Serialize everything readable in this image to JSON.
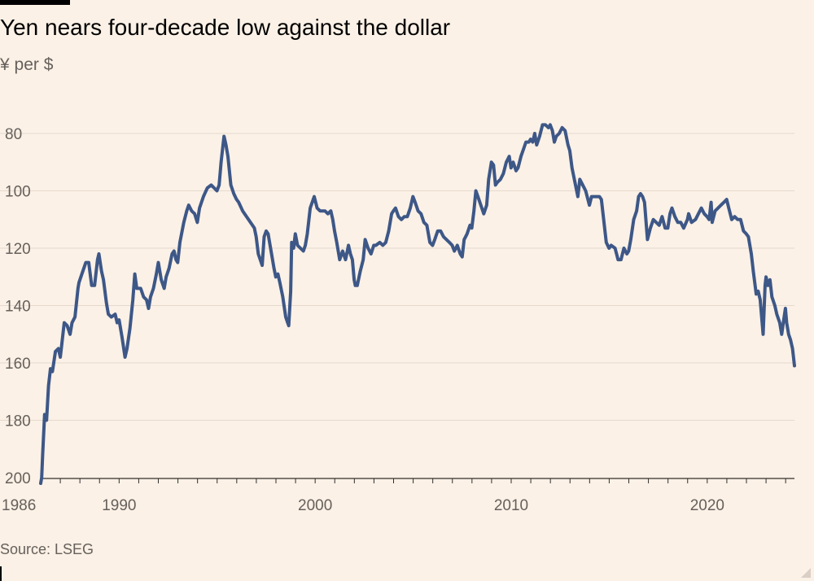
{
  "chart_data": {
    "type": "line",
    "title": "Yen nears four-decade low against the dollar",
    "ylabel": "¥ per $",
    "xlabel": "",
    "source": "Source: LSEG",
    "y_inverted": true,
    "ylim": [
      200,
      72
    ],
    "xlim": [
      1986.0,
      2024.45
    ],
    "y_ticks": [
      80,
      100,
      120,
      140,
      160,
      180,
      200
    ],
    "x_ticks": [
      {
        "value": 1986,
        "label": "1986"
      },
      {
        "value": 1990,
        "label": "1990"
      },
      {
        "value": 2000,
        "label": "2000"
      },
      {
        "value": 2010,
        "label": "2010"
      },
      {
        "value": 2020,
        "label": "2020"
      }
    ],
    "series": [
      {
        "name": "Yen per dollar",
        "color": "#3D5787",
        "points": [
          [
            1986.0,
            202
          ],
          [
            1986.05,
            200
          ],
          [
            1986.1,
            192
          ],
          [
            1986.2,
            178
          ],
          [
            1986.3,
            180
          ],
          [
            1986.4,
            168
          ],
          [
            1986.5,
            162
          ],
          [
            1986.6,
            163
          ],
          [
            1986.75,
            156
          ],
          [
            1986.9,
            155
          ],
          [
            1987.0,
            158
          ],
          [
            1987.1,
            152
          ],
          [
            1987.2,
            146
          ],
          [
            1987.35,
            147
          ],
          [
            1987.5,
            150
          ],
          [
            1987.6,
            146
          ],
          [
            1987.75,
            144
          ],
          [
            1987.9,
            134
          ],
          [
            1987.95,
            132
          ],
          [
            1988.1,
            129
          ],
          [
            1988.2,
            127
          ],
          [
            1988.3,
            125
          ],
          [
            1988.45,
            125
          ],
          [
            1988.6,
            133
          ],
          [
            1988.75,
            133
          ],
          [
            1988.9,
            124
          ],
          [
            1988.97,
            122
          ],
          [
            1989.1,
            128
          ],
          [
            1989.2,
            131
          ],
          [
            1989.35,
            139
          ],
          [
            1989.45,
            143
          ],
          [
            1989.6,
            144
          ],
          [
            1989.8,
            143
          ],
          [
            1989.9,
            146
          ],
          [
            1990.0,
            145
          ],
          [
            1990.15,
            151
          ],
          [
            1990.3,
            158
          ],
          [
            1990.4,
            155
          ],
          [
            1990.55,
            148
          ],
          [
            1990.7,
            138
          ],
          [
            1990.8,
            129
          ],
          [
            1990.9,
            134
          ],
          [
            1990.99,
            134
          ],
          [
            1991.1,
            134
          ],
          [
            1991.25,
            137
          ],
          [
            1991.4,
            138
          ],
          [
            1991.5,
            141
          ],
          [
            1991.6,
            137
          ],
          [
            1991.75,
            134
          ],
          [
            1991.9,
            129
          ],
          [
            1992.0,
            125
          ],
          [
            1992.15,
            131
          ],
          [
            1992.3,
            134
          ],
          [
            1992.4,
            130
          ],
          [
            1992.55,
            127
          ],
          [
            1992.7,
            122
          ],
          [
            1992.8,
            121
          ],
          [
            1992.9,
            124
          ],
          [
            1992.99,
            125
          ],
          [
            1993.1,
            118
          ],
          [
            1993.3,
            111
          ],
          [
            1993.45,
            107
          ],
          [
            1993.55,
            105
          ],
          [
            1993.7,
            107
          ],
          [
            1993.85,
            108
          ],
          [
            1993.99,
            111
          ],
          [
            1994.1,
            106
          ],
          [
            1994.3,
            102
          ],
          [
            1994.5,
            99
          ],
          [
            1994.7,
            98
          ],
          [
            1994.85,
            99
          ],
          [
            1994.99,
            100
          ],
          [
            1995.1,
            98
          ],
          [
            1995.2,
            90
          ],
          [
            1995.3,
            84
          ],
          [
            1995.35,
            81
          ],
          [
            1995.45,
            84
          ],
          [
            1995.55,
            88
          ],
          [
            1995.7,
            98
          ],
          [
            1995.85,
            101
          ],
          [
            1995.99,
            103
          ],
          [
            1996.1,
            104
          ],
          [
            1996.3,
            107
          ],
          [
            1996.5,
            109
          ],
          [
            1996.7,
            111
          ],
          [
            1996.9,
            113
          ],
          [
            1996.99,
            116
          ],
          [
            1997.1,
            122
          ],
          [
            1997.3,
            126
          ],
          [
            1997.4,
            116
          ],
          [
            1997.5,
            114
          ],
          [
            1997.6,
            115
          ],
          [
            1997.75,
            121
          ],
          [
            1997.9,
            127
          ],
          [
            1997.99,
            130
          ],
          [
            1998.1,
            129
          ],
          [
            1998.2,
            132
          ],
          [
            1998.35,
            137
          ],
          [
            1998.5,
            144
          ],
          [
            1998.6,
            146
          ],
          [
            1998.65,
            147
          ],
          [
            1998.75,
            135
          ],
          [
            1998.8,
            118
          ],
          [
            1998.9,
            120
          ],
          [
            1998.99,
            115
          ],
          [
            1999.1,
            119
          ],
          [
            1999.25,
            120
          ],
          [
            1999.4,
            121
          ],
          [
            1999.5,
            119
          ],
          [
            1999.6,
            115
          ],
          [
            1999.75,
            106
          ],
          [
            1999.85,
            104
          ],
          [
            1999.95,
            102
          ],
          [
            2000.1,
            106
          ],
          [
            2000.25,
            107
          ],
          [
            2000.4,
            107
          ],
          [
            2000.5,
            107
          ],
          [
            2000.65,
            108
          ],
          [
            2000.8,
            107
          ],
          [
            2000.9,
            110
          ],
          [
            2000.99,
            114
          ],
          [
            2001.1,
            118
          ],
          [
            2001.25,
            124
          ],
          [
            2001.4,
            121
          ],
          [
            2001.55,
            124
          ],
          [
            2001.7,
            119
          ],
          [
            2001.8,
            122
          ],
          [
            2001.9,
            124
          ],
          [
            2001.99,
            131
          ],
          [
            2002.05,
            133
          ],
          [
            2002.15,
            133
          ],
          [
            2002.3,
            128
          ],
          [
            2002.45,
            124
          ],
          [
            2002.55,
            117
          ],
          [
            2002.7,
            120
          ],
          [
            2002.85,
            122
          ],
          [
            2002.99,
            119
          ],
          [
            2003.1,
            119
          ],
          [
            2003.3,
            118
          ],
          [
            2003.45,
            119
          ],
          [
            2003.6,
            118
          ],
          [
            2003.75,
            114
          ],
          [
            2003.9,
            108
          ],
          [
            2003.99,
            107
          ],
          [
            2004.1,
            106
          ],
          [
            2004.25,
            109
          ],
          [
            2004.4,
            110
          ],
          [
            2004.55,
            109
          ],
          [
            2004.7,
            109
          ],
          [
            2004.85,
            106
          ],
          [
            2004.99,
            102
          ],
          [
            2005.1,
            104
          ],
          [
            2005.25,
            107
          ],
          [
            2005.4,
            108
          ],
          [
            2005.55,
            111
          ],
          [
            2005.7,
            112
          ],
          [
            2005.85,
            118
          ],
          [
            2005.99,
            119
          ],
          [
            2006.1,
            117
          ],
          [
            2006.25,
            114
          ],
          [
            2006.4,
            114
          ],
          [
            2006.55,
            116
          ],
          [
            2006.7,
            117
          ],
          [
            2006.85,
            118
          ],
          [
            2006.99,
            119
          ],
          [
            2007.1,
            121
          ],
          [
            2007.25,
            119
          ],
          [
            2007.4,
            122
          ],
          [
            2007.5,
            123
          ],
          [
            2007.6,
            117
          ],
          [
            2007.75,
            115
          ],
          [
            2007.9,
            112
          ],
          [
            2007.99,
            113
          ],
          [
            2008.1,
            107
          ],
          [
            2008.2,
            100
          ],
          [
            2008.3,
            102
          ],
          [
            2008.45,
            105
          ],
          [
            2008.6,
            108
          ],
          [
            2008.75,
            105
          ],
          [
            2008.85,
            96
          ],
          [
            2008.99,
            90
          ],
          [
            2009.1,
            91
          ],
          [
            2009.2,
            98
          ],
          [
            2009.3,
            97
          ],
          [
            2009.45,
            96
          ],
          [
            2009.6,
            94
          ],
          [
            2009.75,
            90
          ],
          [
            2009.9,
            88
          ],
          [
            2009.99,
            92
          ],
          [
            2010.1,
            90
          ],
          [
            2010.25,
            93
          ],
          [
            2010.35,
            92
          ],
          [
            2010.5,
            88
          ],
          [
            2010.65,
            85
          ],
          [
            2010.75,
            83
          ],
          [
            2010.9,
            83
          ],
          [
            2010.99,
            82
          ],
          [
            2011.1,
            83
          ],
          [
            2011.2,
            80
          ],
          [
            2011.3,
            84
          ],
          [
            2011.45,
            81
          ],
          [
            2011.6,
            77
          ],
          [
            2011.75,
            77
          ],
          [
            2011.9,
            78
          ],
          [
            2011.99,
            77
          ],
          [
            2012.1,
            79
          ],
          [
            2012.2,
            83
          ],
          [
            2012.3,
            81
          ],
          [
            2012.45,
            80
          ],
          [
            2012.6,
            78
          ],
          [
            2012.75,
            79
          ],
          [
            2012.9,
            84
          ],
          [
            2012.99,
            86
          ],
          [
            2013.1,
            92
          ],
          [
            2013.25,
            97
          ],
          [
            2013.4,
            102
          ],
          [
            2013.5,
            96
          ],
          [
            2013.65,
            98
          ],
          [
            2013.8,
            100
          ],
          [
            2013.99,
            105
          ],
          [
            2014.1,
            102
          ],
          [
            2014.3,
            102
          ],
          [
            2014.5,
            102
          ],
          [
            2014.6,
            103
          ],
          [
            2014.7,
            109
          ],
          [
            2014.85,
            118
          ],
          [
            2014.99,
            120
          ],
          [
            2015.1,
            119
          ],
          [
            2015.3,
            120
          ],
          [
            2015.45,
            124
          ],
          [
            2015.6,
            124
          ],
          [
            2015.75,
            120
          ],
          [
            2015.9,
            122
          ],
          [
            2015.99,
            121
          ],
          [
            2016.1,
            117
          ],
          [
            2016.25,
            110
          ],
          [
            2016.4,
            107
          ],
          [
            2016.5,
            102
          ],
          [
            2016.6,
            101
          ],
          [
            2016.7,
            102
          ],
          [
            2016.8,
            104
          ],
          [
            2016.95,
            117
          ],
          [
            2017.1,
            113
          ],
          [
            2017.25,
            110
          ],
          [
            2017.4,
            111
          ],
          [
            2017.55,
            112
          ],
          [
            2017.7,
            109
          ],
          [
            2017.85,
            113
          ],
          [
            2017.99,
            113
          ],
          [
            2018.1,
            108
          ],
          [
            2018.2,
            106
          ],
          [
            2018.35,
            109
          ],
          [
            2018.5,
            111
          ],
          [
            2018.65,
            111
          ],
          [
            2018.8,
            113
          ],
          [
            2018.99,
            110
          ],
          [
            2019.05,
            108
          ],
          [
            2019.2,
            111
          ],
          [
            2019.4,
            110
          ],
          [
            2019.55,
            108
          ],
          [
            2019.7,
            106
          ],
          [
            2019.85,
            108
          ],
          [
            2019.99,
            109
          ],
          [
            2020.1,
            110
          ],
          [
            2020.2,
            104
          ],
          [
            2020.25,
            111
          ],
          [
            2020.4,
            107
          ],
          [
            2020.55,
            106
          ],
          [
            2020.7,
            105
          ],
          [
            2020.85,
            104
          ],
          [
            2020.99,
            103
          ],
          [
            2021.1,
            106
          ],
          [
            2021.25,
            110
          ],
          [
            2021.4,
            109
          ],
          [
            2021.55,
            110
          ],
          [
            2021.7,
            110
          ],
          [
            2021.85,
            114
          ],
          [
            2021.99,
            115
          ],
          [
            2022.1,
            116
          ],
          [
            2022.25,
            122
          ],
          [
            2022.35,
            128
          ],
          [
            2022.5,
            136
          ],
          [
            2022.6,
            135
          ],
          [
            2022.7,
            138
          ],
          [
            2022.8,
            146
          ],
          [
            2022.85,
            150
          ],
          [
            2022.95,
            133
          ],
          [
            2023.0,
            130
          ],
          [
            2023.1,
            133
          ],
          [
            2023.2,
            131
          ],
          [
            2023.3,
            137
          ],
          [
            2023.45,
            140
          ],
          [
            2023.55,
            143
          ],
          [
            2023.7,
            146
          ],
          [
            2023.8,
            150
          ],
          [
            2023.9,
            145
          ],
          [
            2023.99,
            141
          ],
          [
            2024.05,
            146
          ],
          [
            2024.15,
            150
          ],
          [
            2024.25,
            152
          ],
          [
            2024.35,
            155
          ],
          [
            2024.4,
            158
          ],
          [
            2024.45,
            161
          ]
        ]
      }
    ]
  }
}
